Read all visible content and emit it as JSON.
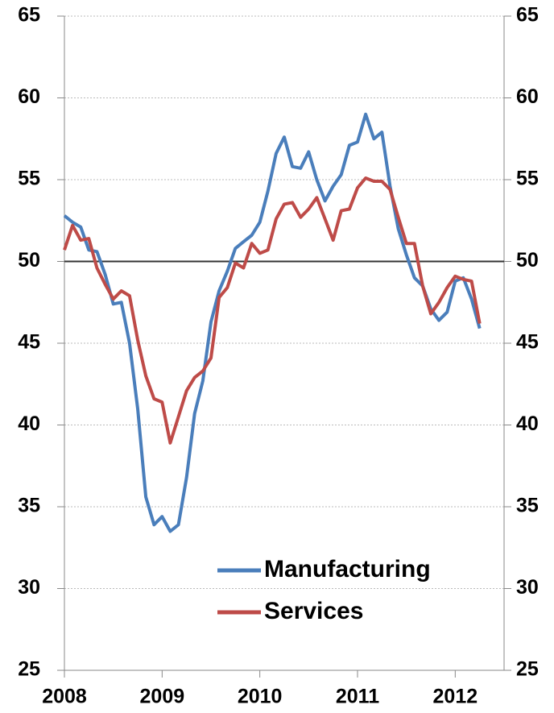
{
  "chart_data": {
    "type": "line",
    "x": [
      2008,
      2008.083,
      2008.167,
      2008.25,
      2008.333,
      2008.417,
      2008.5,
      2008.583,
      2008.667,
      2008.75,
      2008.833,
      2008.917,
      2009,
      2009.083,
      2009.167,
      2009.25,
      2009.333,
      2009.417,
      2009.5,
      2009.583,
      2009.667,
      2009.75,
      2009.833,
      2009.917,
      2010,
      2010.083,
      2010.167,
      2010.25,
      2010.333,
      2010.417,
      2010.5,
      2010.583,
      2010.667,
      2010.75,
      2010.833,
      2010.917,
      2011,
      2011.083,
      2011.167,
      2011.25,
      2011.333,
      2011.417,
      2011.5,
      2011.583,
      2011.667,
      2011.75,
      2011.833,
      2011.917,
      2012,
      2012.083,
      2012.167,
      2012.25
    ],
    "series": [
      {
        "name": "Manufacturing",
        "color": "#4a7ebb",
        "values": [
          52.8,
          52.4,
          52.1,
          50.7,
          50.6,
          49.2,
          47.4,
          47.5,
          45.0,
          41.0,
          35.6,
          33.9,
          34.4,
          33.5,
          33.9,
          36.8,
          40.7,
          42.7,
          46.3,
          48.2,
          49.4,
          50.8,
          51.2,
          51.6,
          52.4,
          54.3,
          56.6,
          57.6,
          55.8,
          55.7,
          56.7,
          55.0,
          53.7,
          54.6,
          55.3,
          57.1,
          57.3,
          59.0,
          57.5,
          57.9,
          54.6,
          52.0,
          50.4,
          49.0,
          48.5,
          47.1,
          46.4,
          46.9,
          48.8,
          49.0,
          47.7,
          45.9
        ]
      },
      {
        "name": "Services",
        "color": "#be4b48",
        "values": [
          50.7,
          52.2,
          51.3,
          51.4,
          49.6,
          48.6,
          47.7,
          48.2,
          47.9,
          45.2,
          43.0,
          41.6,
          41.4,
          38.9,
          40.5,
          42.1,
          42.9,
          43.3,
          44.1,
          47.8,
          48.4,
          49.9,
          49.6,
          51.1,
          50.5,
          50.7,
          52.6,
          53.5,
          53.6,
          52.7,
          53.2,
          53.9,
          52.6,
          51.3,
          53.1,
          53.2,
          54.5,
          55.1,
          54.9,
          54.9,
          54.4,
          52.7,
          51.1,
          51.1,
          48.5,
          46.8,
          47.5,
          48.4,
          49.1,
          48.9,
          48.8,
          46.2
        ]
      }
    ],
    "xlim": [
      2008,
      2012.5
    ],
    "xticks": [
      2008,
      2009,
      2010,
      2011,
      2012
    ],
    "ylim": [
      25,
      65
    ],
    "yticks": [
      25,
      30,
      35,
      40,
      45,
      50,
      55,
      60,
      65
    ],
    "y2lim": [
      25,
      65
    ],
    "y2ticks": [
      25,
      30,
      35,
      40,
      45,
      50,
      55,
      60,
      65
    ],
    "reference_line": 50,
    "grid": true,
    "legend": "lower right"
  }
}
